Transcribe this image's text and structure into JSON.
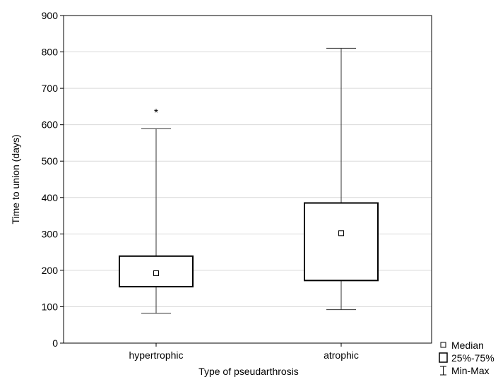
{
  "chart_data": {
    "type": "boxplot",
    "title": "",
    "xlabel": "Type of pseudarthrosis",
    "ylabel": "Time to union (days)",
    "ylim": [
      0,
      900
    ],
    "yticks": [
      0,
      100,
      200,
      300,
      400,
      500,
      600,
      700,
      800,
      900
    ],
    "grid": true,
    "categories": [
      "hypertrophic",
      "atrophic"
    ],
    "boxes": [
      {
        "category": "hypertrophic",
        "min": 82,
        "q1": 155,
        "median": 192,
        "q3": 239,
        "max": 589,
        "outliers": [
          640
        ]
      },
      {
        "category": "atrophic",
        "min": 92,
        "q1": 172,
        "median": 302,
        "q3": 385,
        "max": 810,
        "outliers": []
      }
    ],
    "outlier_marker": "*",
    "legend": {
      "position": "bottom-right",
      "items": [
        {
          "symbol": "small-square",
          "label": "Median"
        },
        {
          "symbol": "box",
          "label": "25%-75%"
        },
        {
          "symbol": "whisker",
          "label": "Min-Max"
        }
      ]
    }
  }
}
